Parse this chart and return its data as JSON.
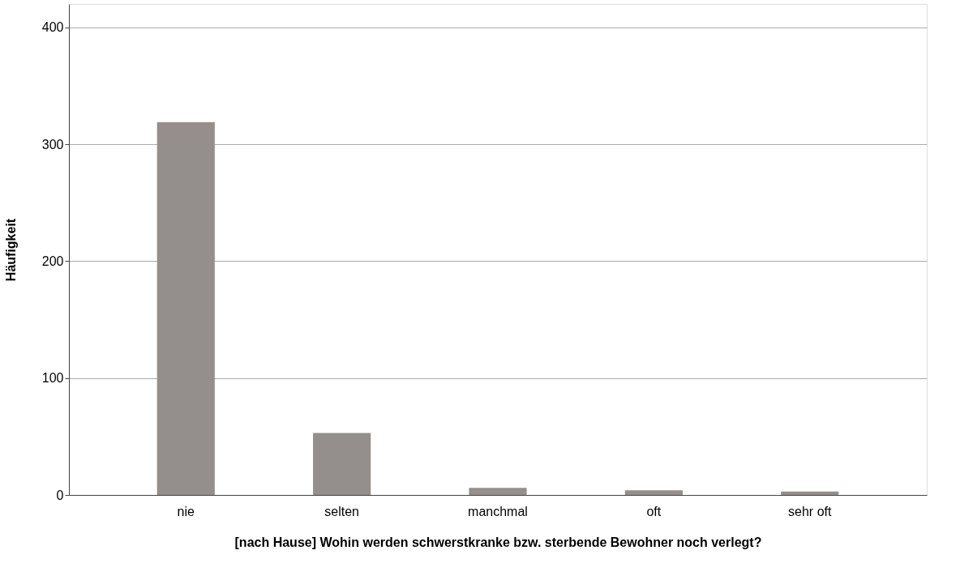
{
  "chart_data": {
    "type": "bar",
    "xlabel": "[nach Hause] Wohin werden schwerstkranke bzw. sterbende Bewohner noch verlegt?",
    "ylabel": "Häufigkeit",
    "categories": [
      "nie",
      "selten",
      "manchmal",
      "oft",
      "sehr oft"
    ],
    "values": [
      319,
      53,
      6,
      4,
      3
    ],
    "color": "#948f8d",
    "ylim": [
      0,
      420
    ],
    "yticks": [
      0,
      100,
      200,
      300,
      400
    ],
    "grid": "y"
  }
}
